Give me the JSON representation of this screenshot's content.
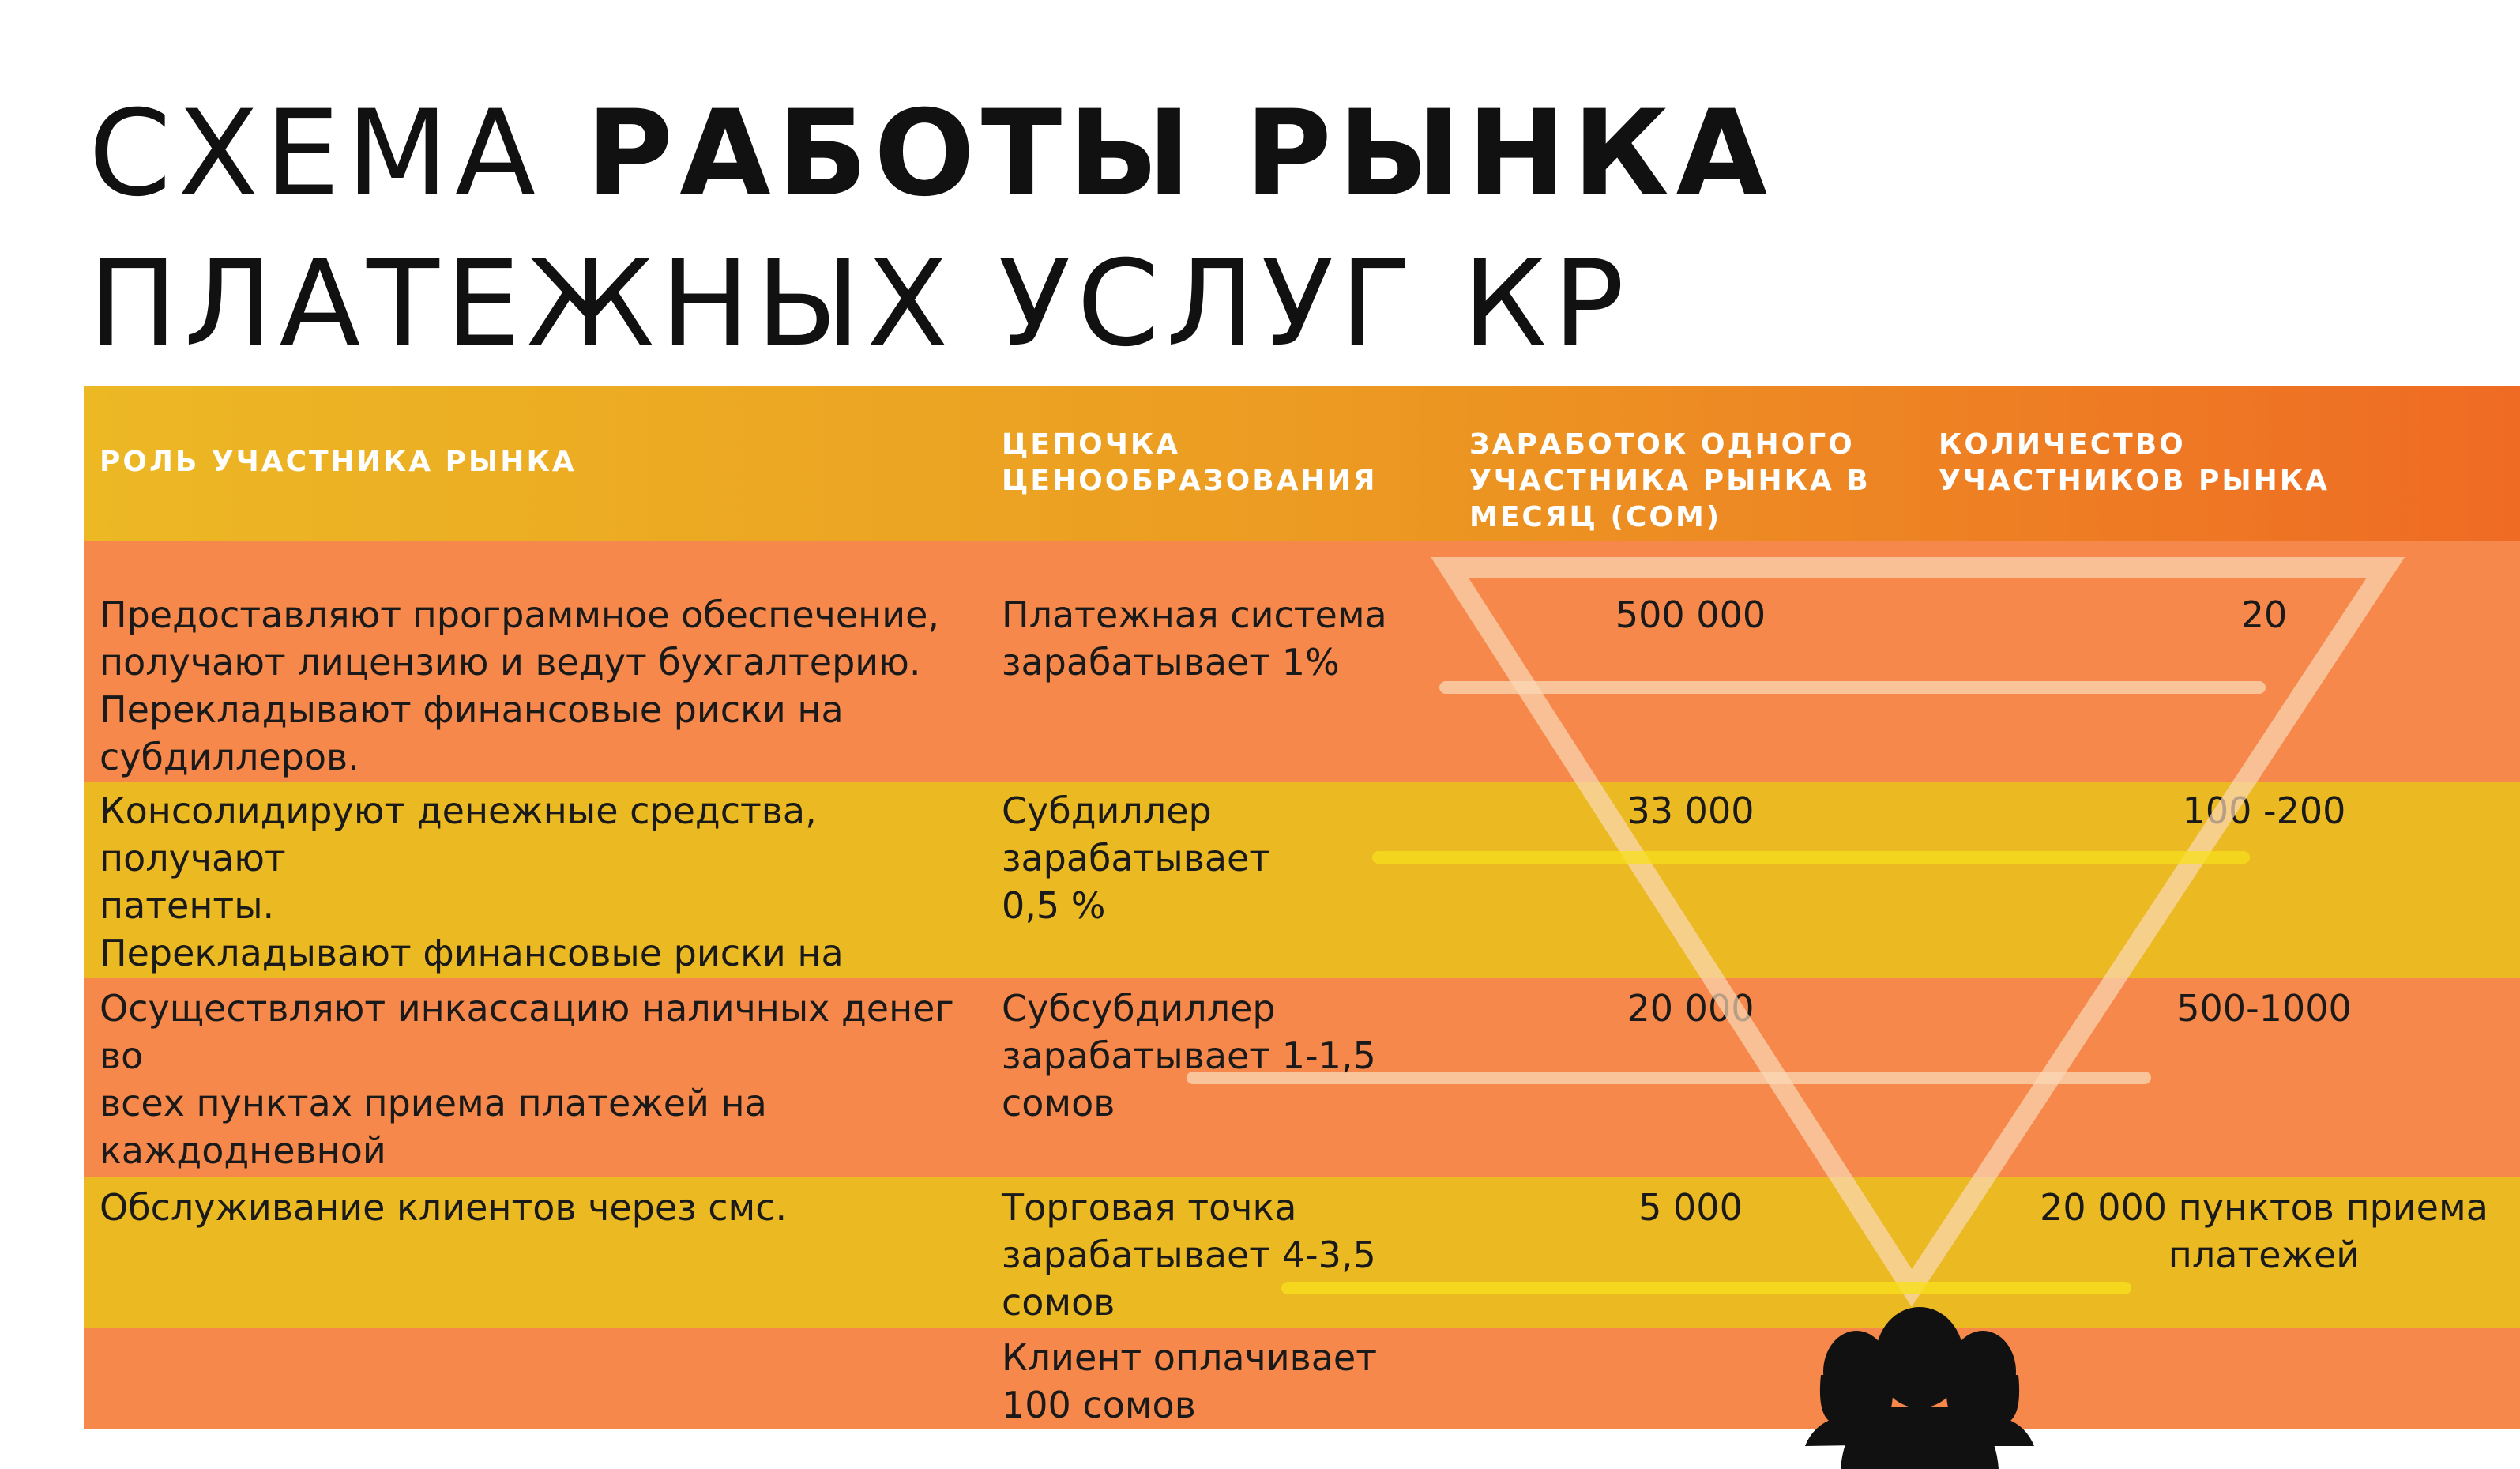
{
  "title": {
    "line1_light": "СХЕМА ",
    "line1_bold": "РАБОТЫ РЫНКА",
    "line2": "ПЛАТЕЖНЫХ УСЛУГ КР"
  },
  "colors": {
    "header_gradient": [
      "#ecb824",
      "#ec9b22",
      "#ef6a24"
    ],
    "row_orange": "#f5884a",
    "row_yellow": "#ebb922",
    "header_text": "#ffffff",
    "triangle_line": "#fbd8b6",
    "tier_line_yellow": "#f7df1e"
  },
  "table": {
    "headers": [
      "РОЛЬ УЧАСТНИКА РЫНКА",
      "ЦЕПОЧКА ЦЕНООБРАЗОВАНИЯ",
      "ЗАРАБОТОК ОДНОГО УЧАСТНИКА РЫНКА В МЕСЯЦ (СОМ)",
      "КОЛИЧЕСТВО УЧАСТНИКОВ РЫНКА"
    ],
    "rows": [
      {
        "role": "Предоставляют программное обеспечение,\nполучают лицензию и ведут бухгалтерию.\nПерекладывают финансовые риски на\nсубдиллеров.",
        "chain": "Платежная система\nзарабатывает 1%",
        "earnings": "500 000",
        "count": "20"
      },
      {
        "role": "Консолидируют денежные средства, получают\nпатенты.\nПерекладывают финансовые риски на\nсубсубдиллеров.",
        "chain": "Субдиллер зарабатывает\n0,5 %",
        "earnings": "33 000",
        "count": "100 -200"
      },
      {
        "role": "Осуществляют инкассацию наличных денег во\nвсех пунктах приема платежей на каждодневной\nоснове. Несут риски, связанные с денежными\nсредставми.",
        "chain": "Субсубдиллер\nзарабатывает 1-1,5\nсомов",
        "earnings": "20 000",
        "count": "500-1000"
      },
      {
        "role": "Обслуживание клиентов через смс.",
        "chain": "Торговая точка\nзарабатывает 4-3,5 сомов",
        "earnings": "5 000",
        "count": "20 000 пунктов приема\nплатежей"
      },
      {
        "role": "",
        "chain": "Клиент оплачивает\n100 сомов",
        "earnings": "",
        "count": ""
      }
    ]
  },
  "icons": {
    "people": "people-group-icon",
    "triangle": "inverted-triangle-icon"
  }
}
